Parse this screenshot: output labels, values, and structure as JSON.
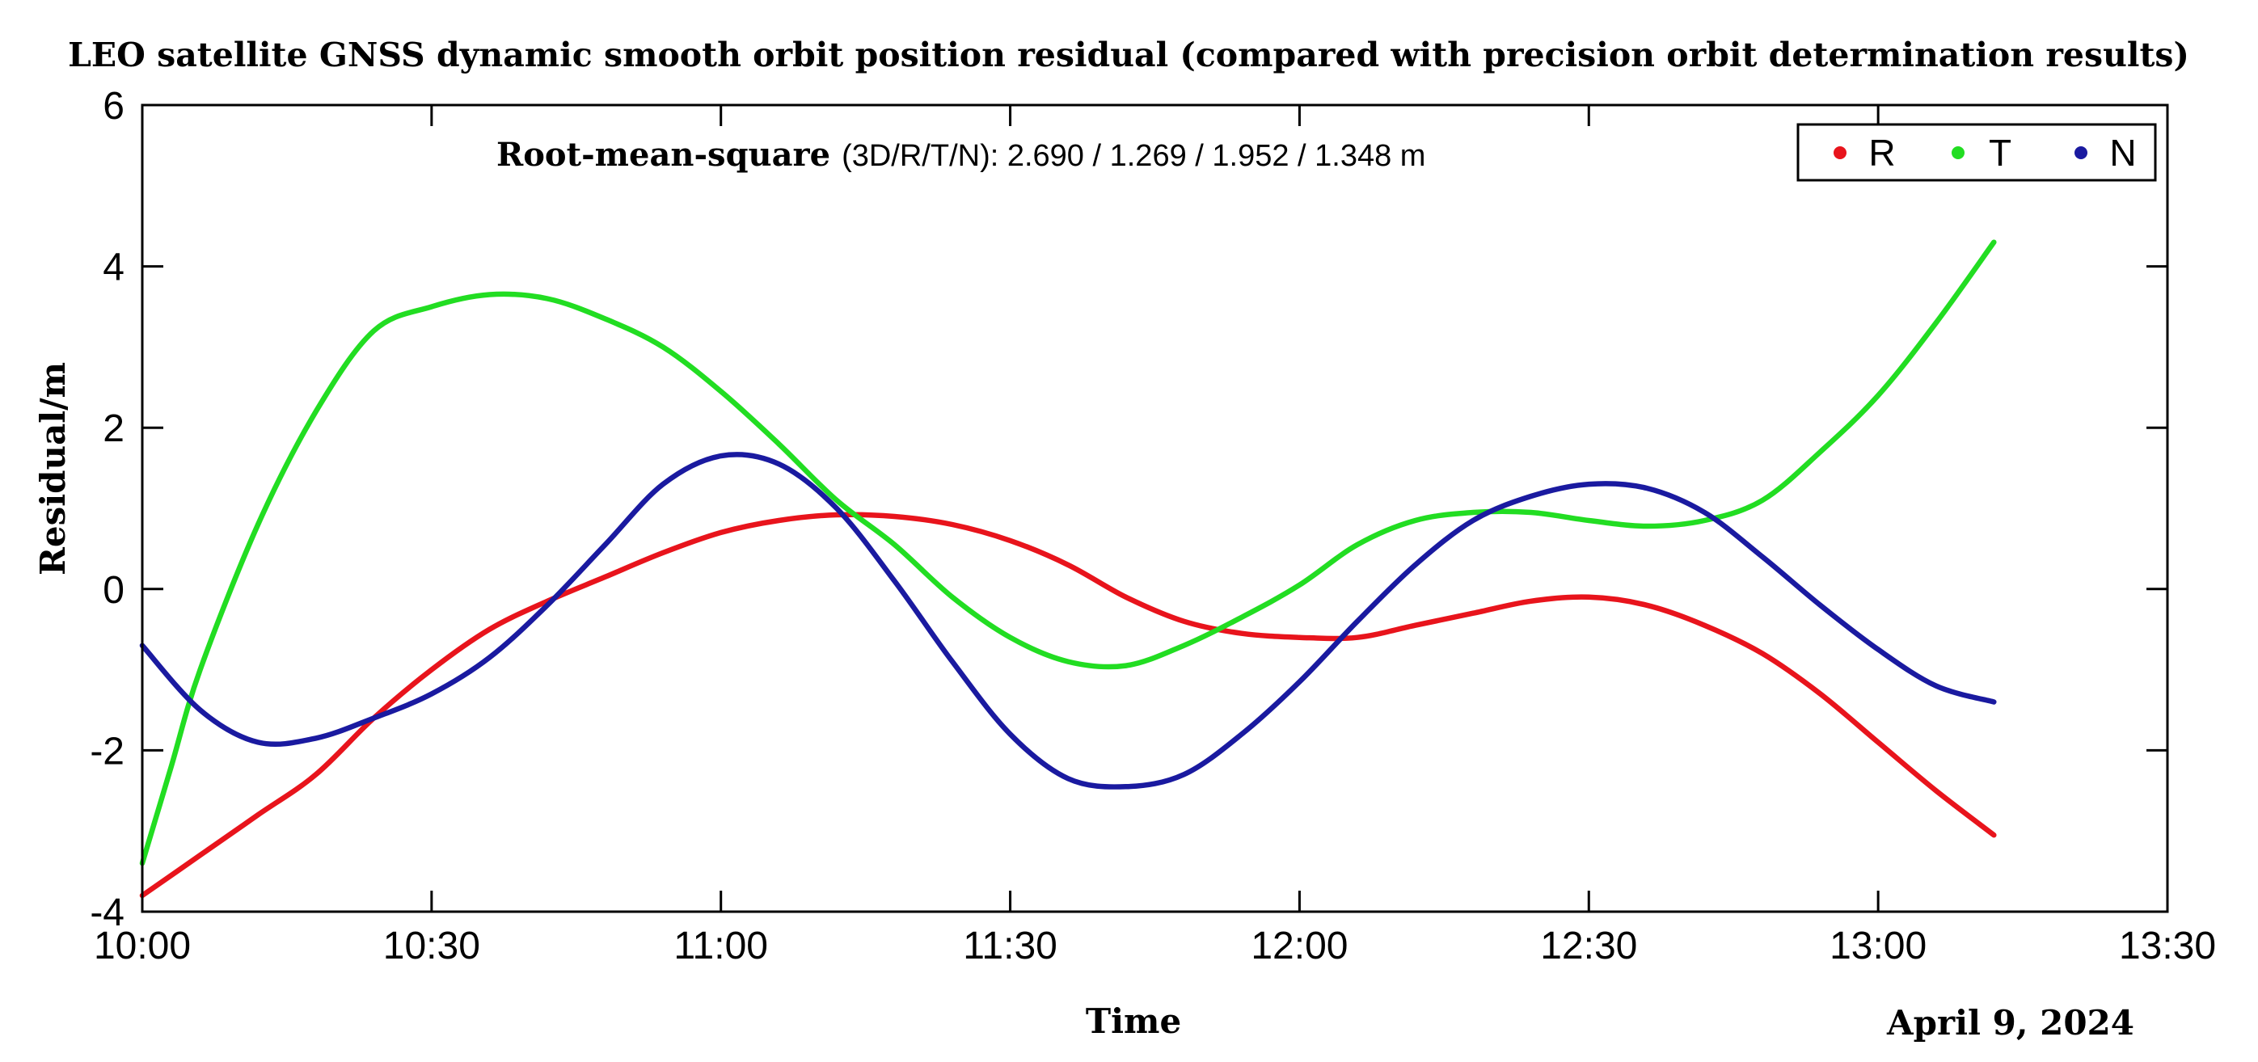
{
  "chart_data": {
    "type": "line",
    "title": "LEO satellite GNSS dynamic smooth orbit position residual (compared with precision orbit determination results)",
    "xlabel": "Time",
    "ylabel": "Residual/m",
    "x_unit": "minutes after 10:00",
    "xlim": [
      0,
      210
    ],
    "ylim": [
      -4,
      6
    ],
    "xticks": [
      0,
      30,
      60,
      90,
      120,
      150,
      180,
      210
    ],
    "xtick_labels": [
      "10:00",
      "10:30",
      "11:00",
      "11:30",
      "12:00",
      "12:30",
      "13:00",
      "13:30"
    ],
    "yticks": [
      -4,
      -2,
      0,
      2,
      4,
      6
    ],
    "ytick_labels": [
      "-4",
      "-2",
      "0",
      "2",
      "4",
      "6"
    ],
    "grid": false,
    "legend_position": "top-right",
    "annotation_prefix": "Root-mean-square",
    "annotation_values": "(3D/R/T/N):  2.690 / 1.269 / 1.952 / 1.348 m",
    "date_label": "April 9, 2024",
    "series": [
      {
        "name": "R",
        "color": "#e8141c",
        "x": [
          0,
          6,
          12,
          18,
          24,
          30,
          36,
          42,
          48,
          54,
          60,
          66,
          72,
          78,
          84,
          90,
          96,
          102,
          108,
          114,
          120,
          126,
          132,
          138,
          144,
          150,
          156,
          162,
          168,
          174,
          180,
          186,
          192
        ],
        "y": [
          -3.8,
          -3.3,
          -2.8,
          -2.3,
          -1.6,
          -1.0,
          -0.5,
          -0.15,
          0.15,
          0.45,
          0.7,
          0.85,
          0.92,
          0.9,
          0.8,
          0.6,
          0.3,
          -0.1,
          -0.4,
          -0.55,
          -0.6,
          -0.6,
          -0.45,
          -0.3,
          -0.15,
          -0.1,
          -0.2,
          -0.45,
          -0.8,
          -1.3,
          -1.9,
          -2.5,
          -3.05
        ]
      },
      {
        "name": "T",
        "color": "#22dd22",
        "x": [
          0,
          3,
          6,
          12,
          18,
          24,
          30,
          36,
          42,
          48,
          54,
          60,
          66,
          72,
          78,
          84,
          90,
          96,
          102,
          108,
          114,
          120,
          126,
          132,
          138,
          144,
          150,
          156,
          162,
          168,
          174,
          180,
          186,
          192
        ],
        "y": [
          -3.4,
          -2.2,
          -1.0,
          0.8,
          2.2,
          3.2,
          3.5,
          3.65,
          3.6,
          3.35,
          3.0,
          2.45,
          1.8,
          1.1,
          0.55,
          -0.1,
          -0.6,
          -0.9,
          -0.95,
          -0.7,
          -0.35,
          0.05,
          0.55,
          0.85,
          0.95,
          0.95,
          0.85,
          0.78,
          0.85,
          1.1,
          1.7,
          2.4,
          3.3,
          4.3
        ]
      },
      {
        "name": "N",
        "color": "#1a1aa0",
        "x": [
          0,
          6,
          12,
          18,
          24,
          30,
          36,
          42,
          48,
          54,
          60,
          66,
          72,
          78,
          84,
          90,
          96,
          102,
          108,
          114,
          120,
          126,
          132,
          138,
          144,
          150,
          156,
          162,
          168,
          174,
          180,
          186,
          192
        ],
        "y": [
          -0.7,
          -1.5,
          -1.9,
          -1.85,
          -1.6,
          -1.3,
          -0.85,
          -0.2,
          0.55,
          1.3,
          1.65,
          1.55,
          1.0,
          0.1,
          -0.9,
          -1.8,
          -2.35,
          -2.45,
          -2.3,
          -1.8,
          -1.15,
          -0.4,
          0.3,
          0.85,
          1.15,
          1.3,
          1.25,
          0.95,
          0.4,
          -0.2,
          -0.75,
          -1.2,
          -1.4
        ]
      }
    ]
  }
}
